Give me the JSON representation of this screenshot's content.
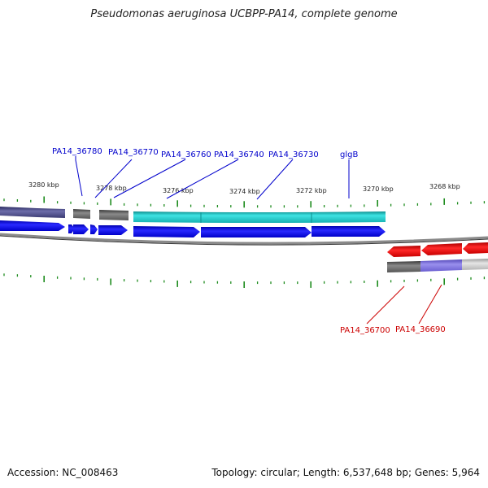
{
  "title": "Pseudomonas aeruginosa UCBPP-PA14, complete genome",
  "footer": {
    "accession": "Accession: NC_008463",
    "summary": "Topology: circular; Length: 6,537,648 bp; Genes: 5,964"
  },
  "colors": {
    "forward_label": "#0000cc",
    "reverse_label": "#cc0000",
    "cds_forward": "#0000ee",
    "cds_reverse": "#ee0000",
    "rna_teal": "#22c5c5",
    "rna_gray": "#666666",
    "rna_purple": "#50508a",
    "rna_lavender": "#7c72d6",
    "rna_light": "#c9c9c9",
    "backbone": "#8a8a8a",
    "tick": "#1e8c1e"
  },
  "kbp_labels": [
    "3280 kbp",
    "3278 kbp",
    "3276 kbp",
    "3274 kbp",
    "3272 kbp",
    "3270 kbp",
    "3268 kbp"
  ],
  "gene_labels_forward": [
    "PA14_36780",
    "PA14_36770",
    "PA14_36760",
    "PA14_36740",
    "PA14_36730",
    "glgB"
  ],
  "gene_labels_reverse": [
    "PA14_36700",
    "PA14_36690"
  ]
}
